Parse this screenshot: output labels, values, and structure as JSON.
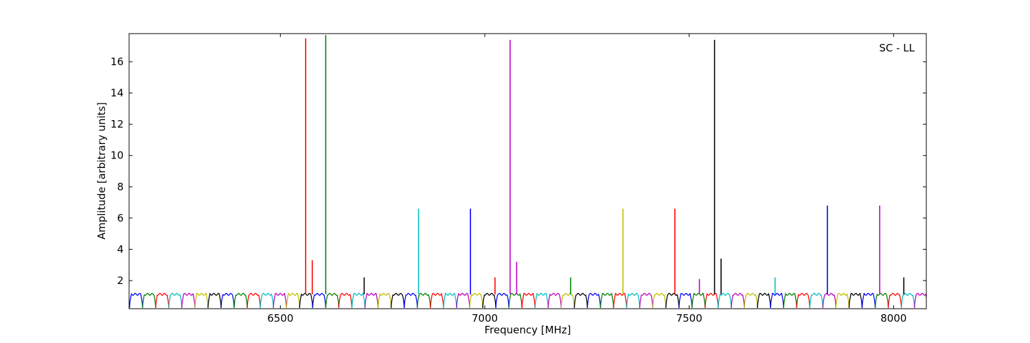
{
  "chart_data": {
    "type": "line",
    "title": "",
    "annotation": "SC - LL",
    "xlabel": "Frequency [MHz]",
    "ylabel": "Amplitude [arbitrary units]",
    "xlim": [
      6130,
      8080
    ],
    "ylim": [
      0.2,
      17.8
    ],
    "xticks": [
      6500,
      7000,
      7500,
      8000
    ],
    "yticks": [
      2,
      4,
      6,
      8,
      10,
      12,
      14,
      16
    ],
    "grid": false,
    "legend": "none",
    "band_width_mhz": 32,
    "band_start_mhz": 6131,
    "band_plateau": 1.12,
    "band_floor": 0.25,
    "band_colors": [
      "#0000ff",
      "#007f00",
      "#ff0000",
      "#00bfbf",
      "#bf00bf",
      "#bfbf00",
      "#000000"
    ],
    "spikes": [
      {
        "x": 6562,
        "y": 17.5,
        "color": "#ff0000"
      },
      {
        "x": 6578,
        "y": 3.3,
        "color": "#ff0000"
      },
      {
        "x": 6611,
        "y": 17.7,
        "color": "#007f00"
      },
      {
        "x": 6705,
        "y": 2.2,
        "color": "#000000"
      },
      {
        "x": 6838,
        "y": 6.6,
        "color": "#00bfbf"
      },
      {
        "x": 6965,
        "y": 6.6,
        "color": "#0000ff"
      },
      {
        "x": 7025,
        "y": 2.2,
        "color": "#ff0000"
      },
      {
        "x": 7062,
        "y": 17.4,
        "color": "#bf00bf"
      },
      {
        "x": 7078,
        "y": 3.2,
        "color": "#bf00bf"
      },
      {
        "x": 7210,
        "y": 2.2,
        "color": "#007f00"
      },
      {
        "x": 7338,
        "y": 6.6,
        "color": "#bfbf00"
      },
      {
        "x": 7465,
        "y": 6.6,
        "color": "#ff0000"
      },
      {
        "x": 7525,
        "y": 2.1,
        "color": "#bf00bf"
      },
      {
        "x": 7562,
        "y": 17.4,
        "color": "#000000"
      },
      {
        "x": 7578,
        "y": 3.4,
        "color": "#000000"
      },
      {
        "x": 7710,
        "y": 2.2,
        "color": "#00bfbf"
      },
      {
        "x": 7838,
        "y": 6.8,
        "color": "#0000ff"
      },
      {
        "x": 7966,
        "y": 6.8,
        "color": "#bf00bf"
      },
      {
        "x": 8025,
        "y": 2.2,
        "color": "#000000"
      }
    ]
  }
}
